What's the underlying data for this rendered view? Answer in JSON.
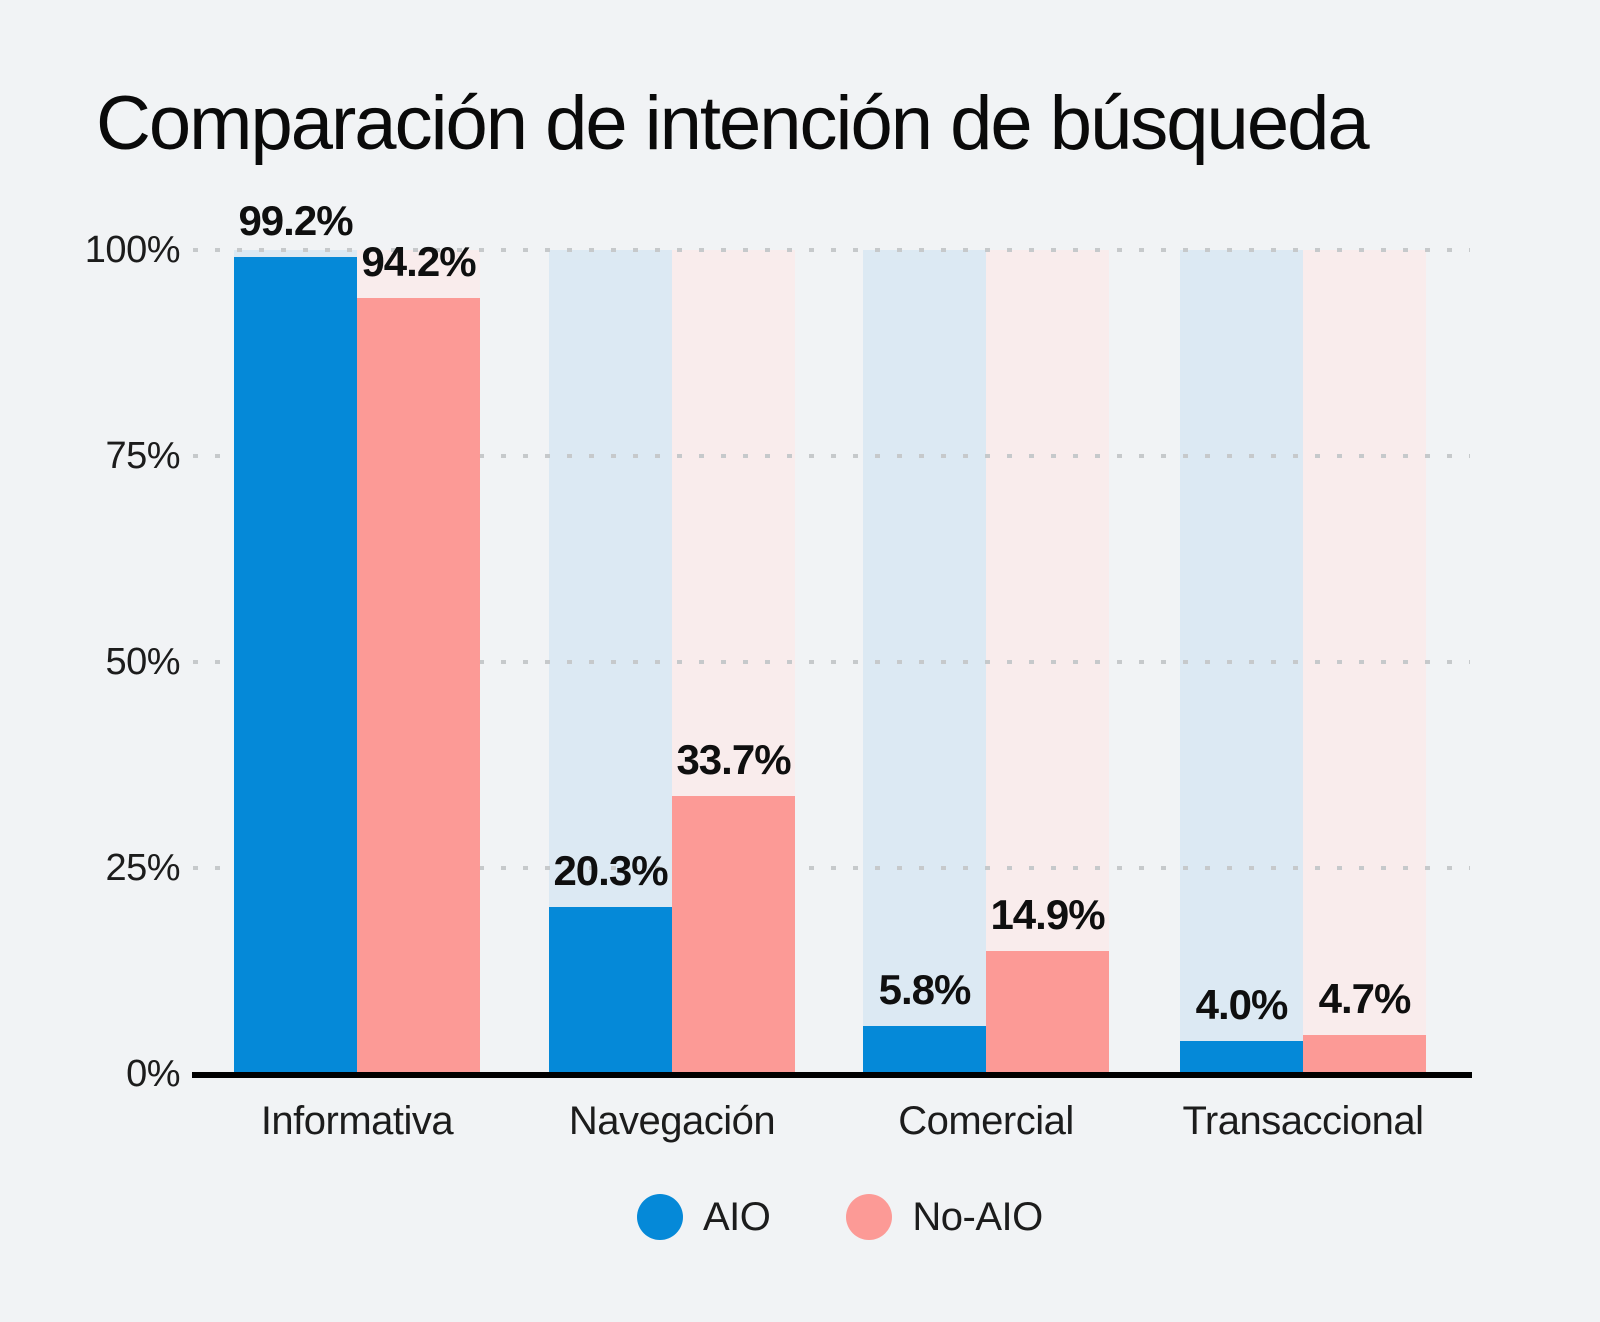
{
  "page": {
    "background": "#f1f3f5"
  },
  "colors": {
    "background": "#f1f3f5",
    "aio_bar": "#0589d8",
    "no_aio_bar": "#fc9a96",
    "aio_track": "#dce9f3",
    "no_aio_track": "#f9ecec",
    "grid_dots": "#c6c9cb",
    "axis_line": "#000000",
    "title_text": "#0a0a0a",
    "label_text": "#1c1c1c"
  },
  "chart_data": {
    "type": "bar",
    "title": "Comparación de intención de búsqueda",
    "categories": [
      "Informativa",
      "Navegación",
      "Comercial",
      "Transaccional"
    ],
    "series": [
      {
        "name": "AIO",
        "color": "#0589d8",
        "track_color": "#dce9f3",
        "values": [
          99.2,
          20.3,
          5.8,
          4.0
        ],
        "value_labels": [
          "99.2%",
          "20.3%",
          "5.8%",
          "4.0%"
        ]
      },
      {
        "name": "No-AIO",
        "color": "#fc9a96",
        "track_color": "#f9ecec",
        "values": [
          94.2,
          33.7,
          14.9,
          4.7
        ],
        "value_labels": [
          "94.2%",
          "33.7%",
          "14.9%",
          "4.7%"
        ]
      }
    ],
    "yticks": [
      {
        "label": "100%",
        "value": 100
      },
      {
        "label": "75%",
        "value": 75
      },
      {
        "label": "50%",
        "value": 50
      },
      {
        "label": "25%",
        "value": 25
      },
      {
        "label": "0%",
        "value": 0
      }
    ],
    "ylim": [
      0,
      100
    ],
    "xlabel": "",
    "ylabel": "",
    "grid": "horizontal-dotted",
    "background_tracks_to": 100,
    "legend_position": "bottom"
  },
  "legend": {
    "items": [
      {
        "label": "AIO",
        "color": "#0589d8"
      },
      {
        "label": "No-AIO",
        "color": "#fc9a96"
      }
    ]
  }
}
